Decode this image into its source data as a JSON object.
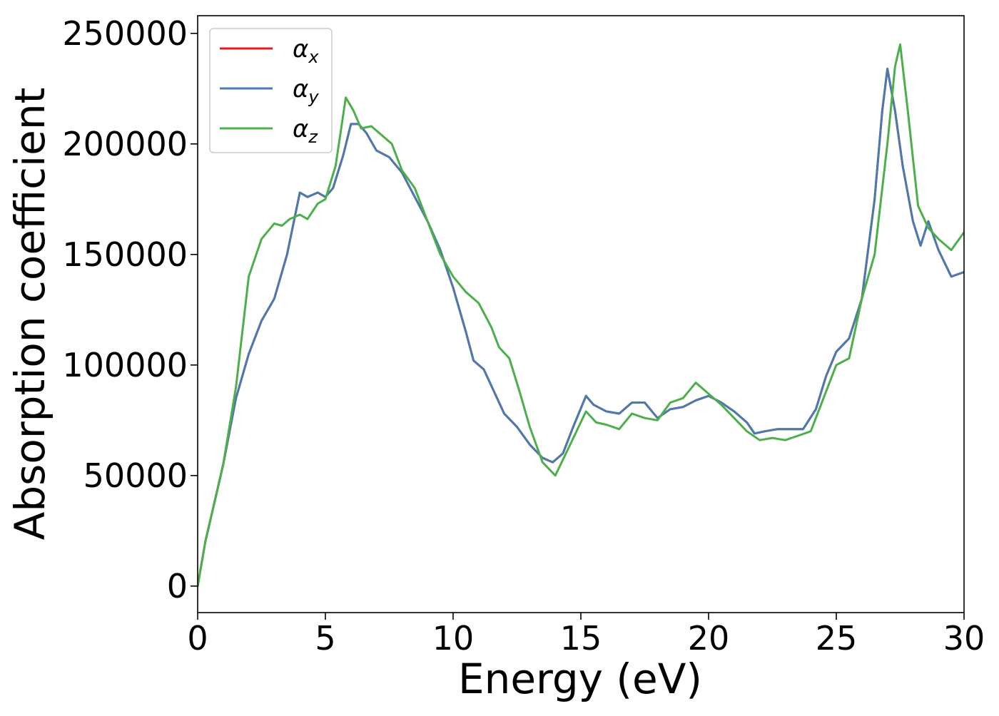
{
  "chart_data": {
    "type": "line",
    "title": "",
    "xlabel": "Energy (eV)",
    "ylabel": "Absorption coefficient",
    "xlim": [
      0,
      30
    ],
    "ylim": [
      -12000,
      258000
    ],
    "x_ticks": [
      0,
      5,
      10,
      15,
      20,
      25,
      30
    ],
    "y_ticks": [
      0,
      50000,
      100000,
      150000,
      200000,
      250000
    ],
    "grid": false,
    "legend_position": "top-left",
    "series": [
      {
        "name": "αx",
        "symbol": "α",
        "subscript": "x",
        "color": "#e41a1c",
        "points": [
          [
            0,
            0
          ],
          [
            0.3,
            20000
          ],
          [
            0.6,
            35000
          ],
          [
            1.0,
            55000
          ],
          [
            1.5,
            85000
          ],
          [
            2.0,
            105000
          ],
          [
            2.5,
            120000
          ],
          [
            3.0,
            130000
          ],
          [
            3.5,
            150000
          ],
          [
            4.0,
            178000
          ],
          [
            4.3,
            176000
          ],
          [
            4.7,
            178000
          ],
          [
            5.0,
            176000
          ],
          [
            5.3,
            180000
          ],
          [
            5.7,
            195000
          ],
          [
            6.0,
            209000
          ],
          [
            6.3,
            209000
          ],
          [
            6.6,
            205000
          ],
          [
            7.0,
            197000
          ],
          [
            7.5,
            194000
          ],
          [
            8.0,
            187000
          ],
          [
            8.5,
            176000
          ],
          [
            9.0,
            165000
          ],
          [
            9.5,
            152000
          ],
          [
            10.0,
            135000
          ],
          [
            10.5,
            115000
          ],
          [
            10.8,
            102000
          ],
          [
            11.2,
            98000
          ],
          [
            11.6,
            88000
          ],
          [
            12.0,
            78000
          ],
          [
            12.5,
            72000
          ],
          [
            13.0,
            64000
          ],
          [
            13.5,
            58000
          ],
          [
            13.9,
            56000
          ],
          [
            14.3,
            60000
          ],
          [
            14.7,
            72000
          ],
          [
            15.2,
            86000
          ],
          [
            15.5,
            82000
          ],
          [
            16.0,
            79000
          ],
          [
            16.5,
            78000
          ],
          [
            17.0,
            83000
          ],
          [
            17.5,
            83000
          ],
          [
            18.0,
            76000
          ],
          [
            18.5,
            80000
          ],
          [
            19.0,
            81000
          ],
          [
            19.5,
            84000
          ],
          [
            20.0,
            86000
          ],
          [
            20.5,
            83000
          ],
          [
            21.0,
            79000
          ],
          [
            21.5,
            74000
          ],
          [
            21.8,
            69000
          ],
          [
            22.2,
            70000
          ],
          [
            22.7,
            71000
          ],
          [
            23.2,
            71000
          ],
          [
            23.7,
            71000
          ],
          [
            24.2,
            80000
          ],
          [
            24.6,
            95000
          ],
          [
            25.0,
            106000
          ],
          [
            25.5,
            112000
          ],
          [
            26.0,
            130000
          ],
          [
            26.5,
            175000
          ],
          [
            26.8,
            215000
          ],
          [
            27.0,
            234000
          ],
          [
            27.3,
            215000
          ],
          [
            27.6,
            190000
          ],
          [
            28.0,
            165000
          ],
          [
            28.3,
            154000
          ],
          [
            28.6,
            165000
          ],
          [
            29.0,
            152000
          ],
          [
            29.5,
            140000
          ],
          [
            30.0,
            142000
          ]
        ]
      },
      {
        "name": "αy",
        "symbol": "α",
        "subscript": "y",
        "color": "#4a7bb0",
        "points": [
          [
            0,
            0
          ],
          [
            0.3,
            20000
          ],
          [
            0.6,
            35000
          ],
          [
            1.0,
            55000
          ],
          [
            1.5,
            85000
          ],
          [
            2.0,
            105000
          ],
          [
            2.5,
            120000
          ],
          [
            3.0,
            130000
          ],
          [
            3.5,
            150000
          ],
          [
            4.0,
            178000
          ],
          [
            4.3,
            176000
          ],
          [
            4.7,
            178000
          ],
          [
            5.0,
            176000
          ],
          [
            5.3,
            180000
          ],
          [
            5.7,
            195000
          ],
          [
            6.0,
            209000
          ],
          [
            6.3,
            209000
          ],
          [
            6.6,
            205000
          ],
          [
            7.0,
            197000
          ],
          [
            7.5,
            194000
          ],
          [
            8.0,
            187000
          ],
          [
            8.5,
            176000
          ],
          [
            9.0,
            165000
          ],
          [
            9.5,
            152000
          ],
          [
            10.0,
            135000
          ],
          [
            10.5,
            115000
          ],
          [
            10.8,
            102000
          ],
          [
            11.2,
            98000
          ],
          [
            11.6,
            88000
          ],
          [
            12.0,
            78000
          ],
          [
            12.5,
            72000
          ],
          [
            13.0,
            64000
          ],
          [
            13.5,
            58000
          ],
          [
            13.9,
            56000
          ],
          [
            14.3,
            60000
          ],
          [
            14.7,
            72000
          ],
          [
            15.2,
            86000
          ],
          [
            15.5,
            82000
          ],
          [
            16.0,
            79000
          ],
          [
            16.5,
            78000
          ],
          [
            17.0,
            83000
          ],
          [
            17.5,
            83000
          ],
          [
            18.0,
            76000
          ],
          [
            18.5,
            80000
          ],
          [
            19.0,
            81000
          ],
          [
            19.5,
            84000
          ],
          [
            20.0,
            86000
          ],
          [
            20.5,
            83000
          ],
          [
            21.0,
            79000
          ],
          [
            21.5,
            74000
          ],
          [
            21.8,
            69000
          ],
          [
            22.2,
            70000
          ],
          [
            22.7,
            71000
          ],
          [
            23.2,
            71000
          ],
          [
            23.7,
            71000
          ],
          [
            24.2,
            80000
          ],
          [
            24.6,
            95000
          ],
          [
            25.0,
            106000
          ],
          [
            25.5,
            112000
          ],
          [
            26.0,
            130000
          ],
          [
            26.5,
            175000
          ],
          [
            26.8,
            215000
          ],
          [
            27.0,
            234000
          ],
          [
            27.3,
            215000
          ],
          [
            27.6,
            190000
          ],
          [
            28.0,
            165000
          ],
          [
            28.3,
            154000
          ],
          [
            28.6,
            165000
          ],
          [
            29.0,
            152000
          ],
          [
            29.5,
            140000
          ],
          [
            30.0,
            142000
          ]
        ]
      },
      {
        "name": "αz",
        "symbol": "α",
        "subscript": "z",
        "color": "#4daf4a",
        "points": [
          [
            0,
            0
          ],
          [
            0.3,
            20000
          ],
          [
            0.6,
            35000
          ],
          [
            1.0,
            55000
          ],
          [
            1.5,
            90000
          ],
          [
            2.0,
            140000
          ],
          [
            2.5,
            157000
          ],
          [
            3.0,
            164000
          ],
          [
            3.3,
            163000
          ],
          [
            3.6,
            166000
          ],
          [
            4.0,
            168000
          ],
          [
            4.3,
            166000
          ],
          [
            4.7,
            173000
          ],
          [
            5.0,
            175000
          ],
          [
            5.4,
            190000
          ],
          [
            5.8,
            221000
          ],
          [
            6.1,
            215000
          ],
          [
            6.4,
            207000
          ],
          [
            6.8,
            208000
          ],
          [
            7.2,
            204000
          ],
          [
            7.6,
            200000
          ],
          [
            8.0,
            188000
          ],
          [
            8.5,
            180000
          ],
          [
            9.0,
            165000
          ],
          [
            9.5,
            150000
          ],
          [
            10.0,
            140000
          ],
          [
            10.5,
            133000
          ],
          [
            11.0,
            128000
          ],
          [
            11.5,
            117000
          ],
          [
            11.8,
            108000
          ],
          [
            12.2,
            103000
          ],
          [
            12.6,
            88000
          ],
          [
            13.0,
            72000
          ],
          [
            13.5,
            56000
          ],
          [
            14.0,
            50000
          ],
          [
            14.5,
            62000
          ],
          [
            15.2,
            79000
          ],
          [
            15.6,
            74000
          ],
          [
            16.0,
            73000
          ],
          [
            16.5,
            71000
          ],
          [
            17.0,
            78000
          ],
          [
            17.5,
            76000
          ],
          [
            18.0,
            75000
          ],
          [
            18.5,
            83000
          ],
          [
            19.0,
            85000
          ],
          [
            19.5,
            92000
          ],
          [
            20.0,
            87000
          ],
          [
            20.5,
            82000
          ],
          [
            21.0,
            76000
          ],
          [
            21.5,
            70000
          ],
          [
            22.0,
            66000
          ],
          [
            22.5,
            67000
          ],
          [
            23.0,
            66000
          ],
          [
            23.5,
            68000
          ],
          [
            24.0,
            70000
          ],
          [
            24.5,
            85000
          ],
          [
            25.0,
            100000
          ],
          [
            25.5,
            103000
          ],
          [
            26.0,
            130000
          ],
          [
            26.5,
            150000
          ],
          [
            27.0,
            200000
          ],
          [
            27.3,
            235000
          ],
          [
            27.5,
            245000
          ],
          [
            27.8,
            215000
          ],
          [
            28.2,
            172000
          ],
          [
            28.6,
            162000
          ],
          [
            29.0,
            157000
          ],
          [
            29.5,
            152000
          ],
          [
            30.0,
            160000
          ]
        ]
      }
    ]
  }
}
